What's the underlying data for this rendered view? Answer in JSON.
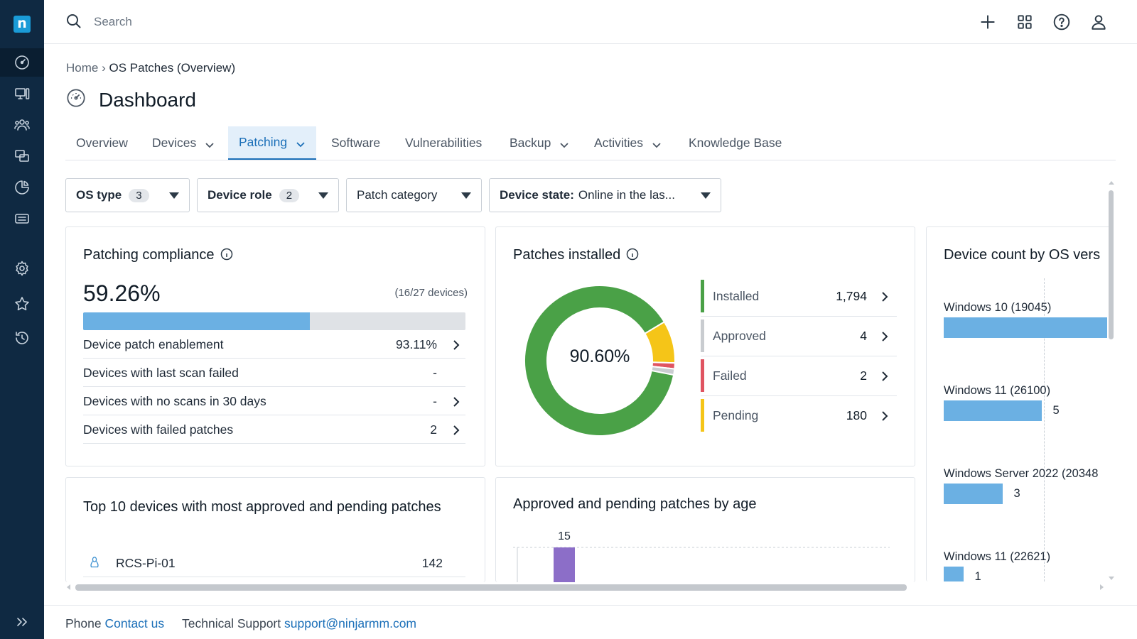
{
  "colors": {
    "rail": "#0f2942",
    "accent": "#1b6fb8",
    "installed": "#4aa147",
    "approved": "#c9ccd0",
    "failed": "#e05461",
    "pending": "#f5c518",
    "bar": "#6bb0e3",
    "age_bar": "#8c6ec8"
  },
  "rail": {
    "logo": "n",
    "items": [
      "dashboard-icon",
      "devices-icon",
      "users-icon",
      "remote-icon",
      "reports-icon",
      "ticket-icon",
      "settings-icon",
      "favorites-icon",
      "history-icon",
      "expand-icon"
    ]
  },
  "search": {
    "placeholder": "Search",
    "value": ""
  },
  "topbar_icons": [
    "plus-icon",
    "apps-grid-icon",
    "help-icon",
    "user-icon"
  ],
  "breadcrumb": {
    "home": "Home",
    "separator": "›",
    "current": "OS Patches (Overview)"
  },
  "page": {
    "title": "Dashboard"
  },
  "tabs": [
    {
      "label": "Overview",
      "dropdown": false
    },
    {
      "label": "Devices",
      "dropdown": true
    },
    {
      "label": "Patching",
      "dropdown": true,
      "active": true
    },
    {
      "label": "Software",
      "dropdown": false
    },
    {
      "label": "Vulnerabilities",
      "dropdown": false
    },
    {
      "label": "Backup",
      "dropdown": true
    },
    {
      "label": "Activities",
      "dropdown": true
    },
    {
      "label": "Knowledge Base",
      "dropdown": false
    }
  ],
  "filters": {
    "os_type": {
      "label": "OS type",
      "count": "3"
    },
    "device_role": {
      "label": "Device role",
      "count": "2"
    },
    "patch_category": {
      "label": "Patch category"
    },
    "device_state": {
      "label": "Device state:",
      "value": "Online in the las..."
    }
  },
  "compliance": {
    "title": "Patching compliance",
    "percent_text": "59.26%",
    "percent_value": 59.26,
    "devices": "(16/27 devices)",
    "rows": [
      {
        "label": "Device patch enablement",
        "value": "93.11%",
        "link": true
      },
      {
        "label": "Devices with last scan failed",
        "value": "-",
        "link": false
      },
      {
        "label": "Devices with no scans in 30 days",
        "value": "-",
        "link": true
      },
      {
        "label": "Devices with failed patches",
        "value": "2",
        "link": true
      }
    ]
  },
  "patches_installed": {
    "title": "Patches installed",
    "center_label": "90.60%",
    "segments": [
      {
        "label": "Installed",
        "value": "1,794",
        "number": 1794,
        "color": "#4aa147"
      },
      {
        "label": "Approved",
        "value": "4",
        "number": 4,
        "color": "#c9ccd0"
      },
      {
        "label": "Failed",
        "value": "2",
        "number": 2,
        "color": "#e05461"
      },
      {
        "label": "Pending",
        "value": "180",
        "number": 180,
        "color": "#f5c518"
      }
    ]
  },
  "os_versions": {
    "title": "Device count by OS vers",
    "max": 8,
    "rows": [
      {
        "label": "Windows 10 (19045)",
        "value": "",
        "count": 8
      },
      {
        "label": "Windows 11 (26100)",
        "value": "5",
        "count": 5
      },
      {
        "label": "Windows Server 2022 (20348",
        "value": "3",
        "count": 3
      },
      {
        "label": "Windows 11 (22621)",
        "value": "1",
        "count": 1
      }
    ]
  },
  "top10": {
    "title": "Top 10 devices with most approved and pending patches",
    "rows": [
      {
        "name": "RCS-Pi-01",
        "value": "142",
        "icon": "linux-icon"
      }
    ]
  },
  "age_chart": {
    "title": "Approved and pending patches by age",
    "bar_label": "15"
  },
  "chart_data": [
    {
      "type": "pie",
      "title": "Patches installed",
      "categories": [
        "Installed",
        "Approved",
        "Failed",
        "Pending"
      ],
      "values": [
        1794,
        4,
        2,
        180
      ],
      "center_label": "90.60%"
    },
    {
      "type": "bar",
      "title": "Device count by OS vers",
      "categories": [
        "Windows 10 (19045)",
        "Windows 11 (26100)",
        "Windows Server 2022 (20348",
        "Windows 11 (22621)"
      ],
      "values": [
        null,
        5,
        3,
        1
      ]
    },
    {
      "type": "bar",
      "title": "Approved and pending patches by age",
      "categories": [
        ""
      ],
      "values": [
        15
      ]
    }
  ],
  "footer": {
    "phone_label": "Phone",
    "phone_link": "Contact us",
    "support_label": "Technical Support",
    "support_link": "support@ninjarmm.com"
  }
}
